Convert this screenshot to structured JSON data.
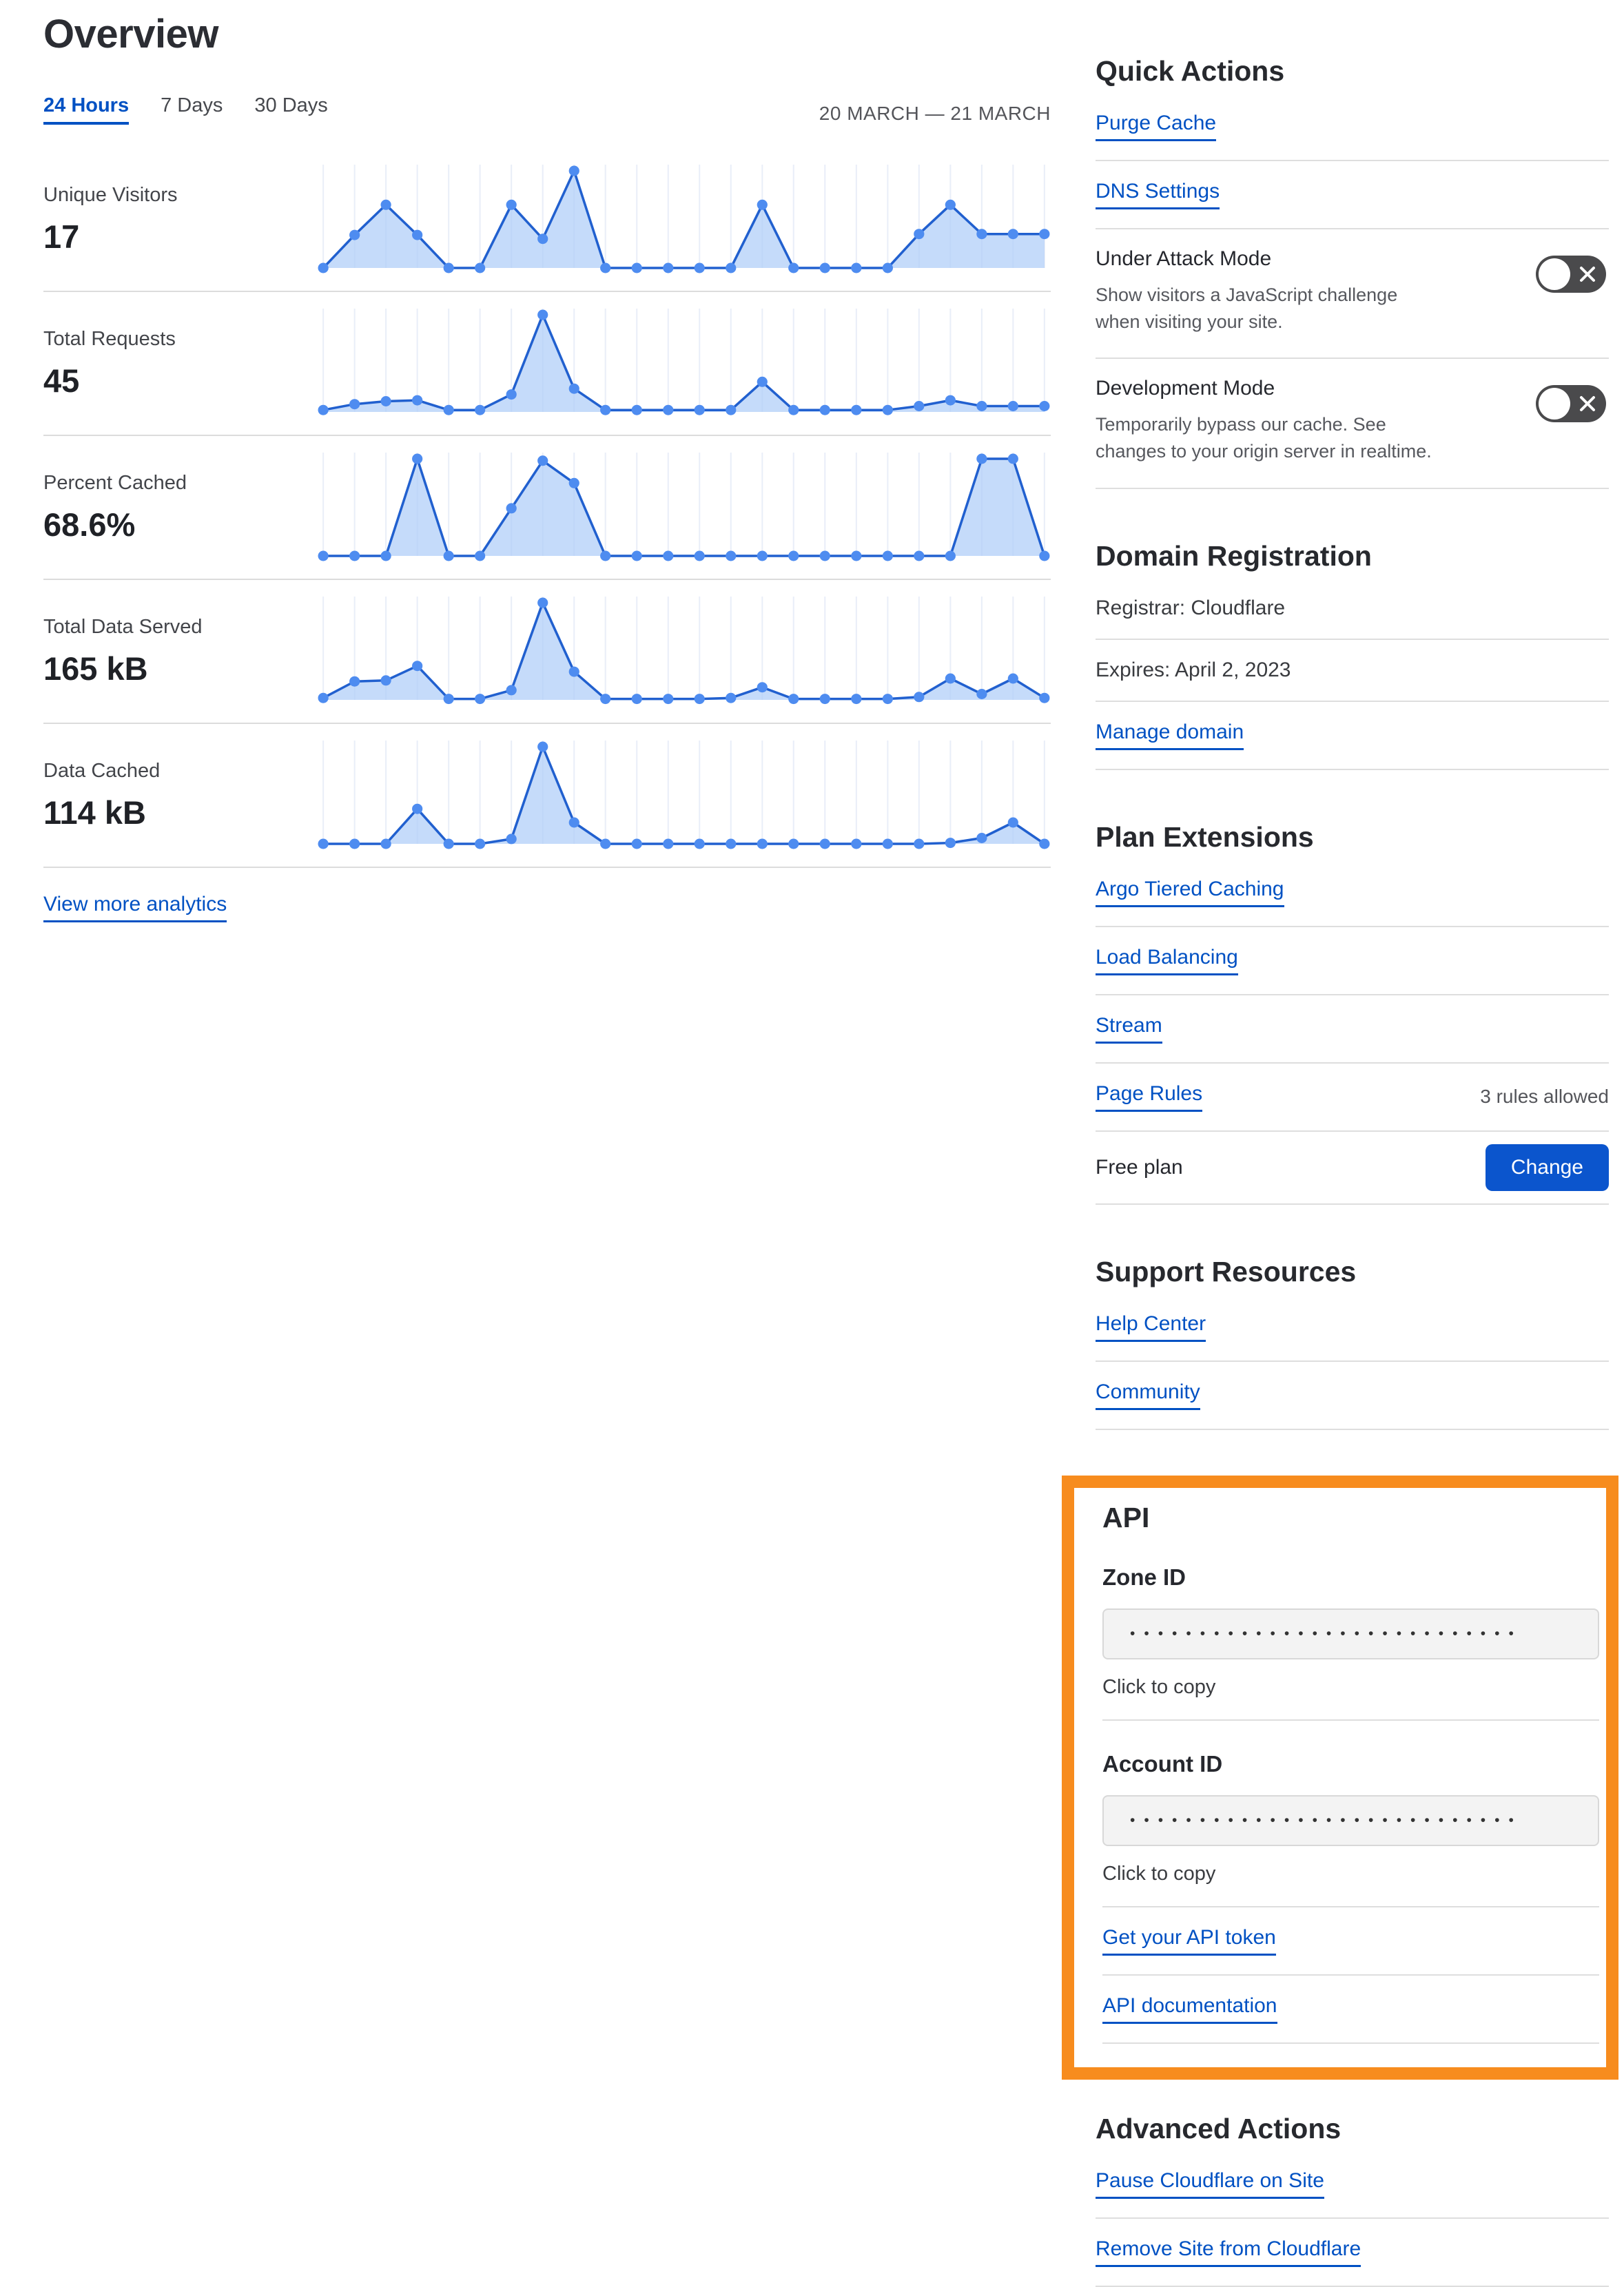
{
  "page_title": "Overview",
  "time_tabs": {
    "items": [
      {
        "label": "24 Hours",
        "active": true
      },
      {
        "label": "7 Days",
        "active": false
      },
      {
        "label": "30 Days",
        "active": false
      }
    ],
    "date_range": "20 MARCH — 21 MARCH"
  },
  "metrics": [
    {
      "label": "Unique Visitors",
      "value": "17"
    },
    {
      "label": "Total Requests",
      "value": "45"
    },
    {
      "label": "Percent Cached",
      "value": "68.6%"
    },
    {
      "label": "Total Data Served",
      "value": "165 kB"
    },
    {
      "label": "Data Cached",
      "value": "114 kB"
    }
  ],
  "view_more_label": "View more analytics",
  "chart_data": [
    {
      "type": "area",
      "title": "Unique Visitors",
      "display_value": "17",
      "x_axis": "24 hourly points, 20 March — 21 March",
      "y_unit": "relative height, % of series max (no axis labels shown)",
      "values": [
        0,
        34,
        65,
        34,
        0,
        0,
        65,
        30,
        100,
        0,
        0,
        0,
        0,
        0,
        65,
        0,
        0,
        0,
        0,
        35,
        65,
        35,
        35,
        35
      ]
    },
    {
      "type": "area",
      "title": "Total Requests",
      "display_value": "45",
      "x_axis": "24 hourly points, 20 March — 21 March",
      "y_unit": "relative height, % of series max (no axis labels shown)",
      "values": [
        2,
        8,
        11,
        12,
        2,
        2,
        18,
        100,
        24,
        2,
        2,
        2,
        2,
        2,
        31,
        2,
        2,
        2,
        2,
        6,
        12,
        6,
        6,
        6
      ]
    },
    {
      "type": "area",
      "title": "Percent Cached",
      "display_value": "68.6%",
      "x_axis": "24 hourly points, 20 March — 21 March",
      "y_unit": "relative height, % of series max (no axis labels shown)",
      "values": [
        0,
        0,
        0,
        100,
        0,
        0,
        49,
        98,
        75,
        0,
        0,
        0,
        0,
        0,
        0,
        0,
        0,
        0,
        0,
        0,
        0,
        100,
        100,
        0
      ]
    },
    {
      "type": "area",
      "title": "Total Data Served",
      "display_value": "165 kB",
      "x_axis": "24 hourly points, 20 March — 21 March",
      "y_unit": "relative height, % of series max (no axis labels shown)",
      "values": [
        2,
        19,
        20,
        35,
        1,
        1,
        10,
        100,
        29,
        1,
        1,
        1,
        1,
        2,
        13,
        1,
        1,
        1,
        1,
        3,
        22,
        6,
        22,
        2
      ]
    },
    {
      "type": "area",
      "title": "Data Cached",
      "display_value": "114 kB",
      "x_axis": "24 hourly points, 20 March — 21 March",
      "y_unit": "relative height, % of series max (no axis labels shown)",
      "values": [
        0,
        0,
        0,
        36,
        0,
        0,
        5,
        100,
        22,
        0,
        0,
        0,
        0,
        0,
        0,
        0,
        0,
        0,
        0,
        0,
        1,
        6,
        22,
        0
      ]
    }
  ],
  "quick_actions": {
    "title": "Quick Actions",
    "links": [
      {
        "label": "Purge Cache"
      },
      {
        "label": "DNS Settings"
      }
    ],
    "toggles": [
      {
        "label": "Under Attack Mode",
        "description": "Show visitors a JavaScript challenge\nwhen visiting your site.",
        "state": "off"
      },
      {
        "label": "Development Mode",
        "description": "Temporarily bypass our cache. See\nchanges to your origin server in realtime.",
        "state": "off"
      }
    ]
  },
  "domain_registration": {
    "title": "Domain Registration",
    "rows": [
      "Registrar: Cloudflare",
      "Expires: April 2, 2023"
    ],
    "link": "Manage domain"
  },
  "plan_extensions": {
    "title": "Plan Extensions",
    "links": [
      "Argo Tiered Caching",
      "Load Balancing",
      "Stream",
      "Page Rules"
    ],
    "page_rules_note": "3 rules allowed",
    "plan_label": "Free plan",
    "change_button": "Change"
  },
  "support_resources": {
    "title": "Support Resources",
    "links": [
      "Help Center",
      "Community"
    ]
  },
  "api": {
    "title": "API",
    "fields": [
      {
        "label": "Zone ID",
        "value_masked": "••••••••••••••••••••••••••••",
        "helper": "Click to copy"
      },
      {
        "label": "Account ID",
        "value_masked": "••••••••••••••••••••••••••••",
        "helper": "Click to copy"
      }
    ],
    "links": [
      "Get your API token",
      "API documentation"
    ]
  },
  "advanced_actions": {
    "title": "Advanced Actions",
    "links": [
      "Pause Cloudflare on Site",
      "Remove Site from Cloudflare"
    ]
  },
  "colors": {
    "link_blue": "#0051c3",
    "button_blue": "#0b55cd",
    "highlight_orange": "#f78c1e",
    "toggle_bg": "#4a4a4c",
    "chart_line": "#2160cf",
    "chart_dot": "#4e8cf0",
    "chart_fill": "#aecdf8",
    "chart_grid": "#e9eef8",
    "separator_gray": "#dedede"
  }
}
